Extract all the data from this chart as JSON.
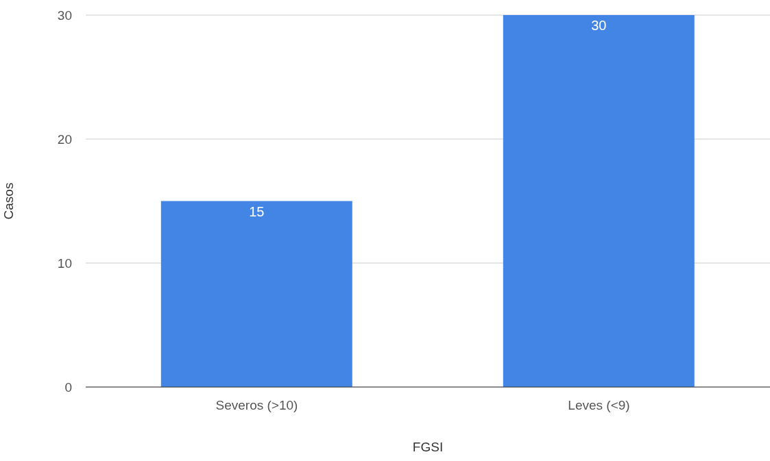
{
  "chart_data": {
    "type": "bar",
    "xlabel": "FGSI",
    "ylabel": "Casos",
    "categories": [
      "Severos (>10)",
      "Leves (<9)"
    ],
    "values": [
      15,
      30
    ],
    "color": "#4285e5",
    "ylim": [
      0,
      30
    ],
    "yticks": [
      0,
      10,
      20,
      30
    ],
    "grid": "y",
    "data_labels": true
  }
}
